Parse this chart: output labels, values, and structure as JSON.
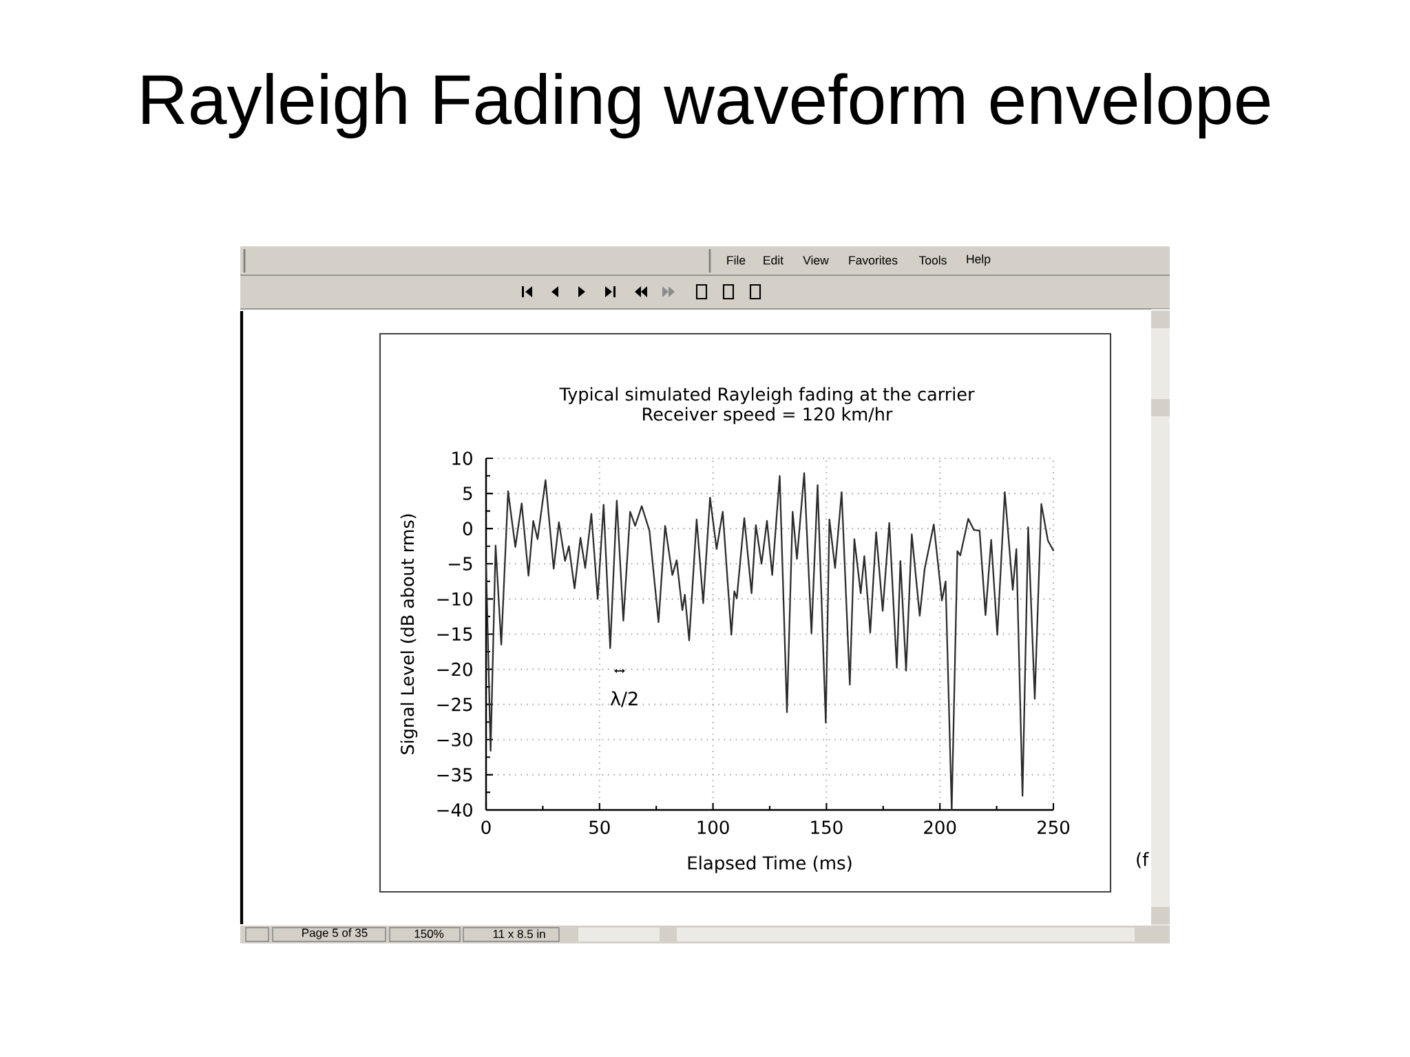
{
  "chart_data": {
    "type": "line",
    "title": "Rayleigh Fading waveform envelope",
    "subtitle": "Typical simulated Rayleigh fading at the carrier",
    "xlabel": "Elapsed Time (ms)",
    "ylabel": "Signal Level (dB about rms)",
    "annotations": [
      "Receiver speed = 120 km/hr",
      "λ/2",
      "File",
      "Edit",
      "View",
      "Favorites",
      "Tools",
      "Help",
      "Page 5 of 35",
      "150%",
      "11 x 8.5 in",
      "(f"
    ],
    "x": [
      0,
      2.0,
      4.2,
      6.7,
      9.7,
      12.9,
      15.7,
      18.7,
      20.8,
      22.7,
      26.2,
      29.8,
      32.1,
      34.8,
      36.5,
      39.0,
      41.6,
      43.7,
      46.4,
      49.2,
      51.8,
      54.7,
      57.6,
      60.5,
      63.5,
      65.7,
      68.6,
      72.0,
      76.0,
      78.9,
      82.1,
      84.0,
      86.5,
      87.6,
      89.5,
      92.8,
      95.7,
      98.7,
      101.6,
      104.3,
      108.1,
      109.4,
      110.5,
      113.8,
      117.0,
      118.9,
      121.4,
      123.8,
      126.1,
      129.4,
      132.6,
      135.1,
      137.0,
      140.2,
      143.4,
      146.1,
      149.7,
      151.3,
      153.8,
      156.7,
      160.3,
      162.3,
      165.1,
      166.7,
      169.3,
      171.9,
      174.8,
      177.7,
      181.0,
      182.6,
      185.1,
      187.6,
      191.1,
      193.3,
      197.3,
      200.9,
      202.5,
      205.2,
      207.7,
      209.0,
      212.5,
      215.0,
      217.5,
      220.1,
      222.6,
      225.3,
      228.6,
      232.1,
      233.7,
      236.4,
      238.9,
      241.8,
      244.7,
      247.6,
      250.0
    ],
    "values": [
      -5,
      -31.6,
      -2.4,
      -16.5,
      5.3,
      -2.6,
      3.6,
      -6.7,
      1.1,
      -1.5,
      6.9,
      -5.7,
      0.9,
      -4.6,
      -2.5,
      -8.5,
      -1.3,
      -5.6,
      2.1,
      -10.0,
      3.4,
      -17.0,
      4.0,
      -13.1,
      2.4,
      0.4,
      3.2,
      -0.3,
      -13.3,
      0.4,
      -6.6,
      -4.5,
      -11.6,
      -9.4,
      -15.9,
      1.3,
      -10.6,
      4.4,
      -2.9,
      2.4,
      -15.1,
      -8.9,
      -9.9,
      1.5,
      -9.2,
      0.5,
      -5.0,
      1.1,
      -6.6,
      7.5,
      -26.1,
      2.4,
      -4.3,
      7.9,
      -14.9,
      6.2,
      -27.6,
      1.3,
      -5.6,
      5.2,
      -22.2,
      -1.5,
      -9.2,
      -3.9,
      -14.8,
      -0.5,
      -11.7,
      0.8,
      -19.8,
      -4.6,
      -20.2,
      -0.8,
      -12.4,
      -5.7,
      0.6,
      -10.2,
      -7.5,
      -40,
      -3.2,
      -3.8,
      1.4,
      -0.2,
      -0.3,
      -12.3,
      -1.6,
      -15.1,
      5.2,
      -8.7,
      -2.9,
      -38.0,
      0.2,
      -24.2,
      3.5,
      -1.7,
      -3.1
    ],
    "color": "#2b2b2b",
    "xlim": [
      0,
      250
    ],
    "ylim": [
      -40,
      10
    ],
    "xticks": [
      0,
      50,
      100,
      150,
      200,
      250
    ],
    "yticks": [
      {
        "value": -40,
        "label": "−40"
      },
      {
        "value": -35,
        "label": "−35"
      },
      {
        "value": -30,
        "label": "−30"
      },
      {
        "value": -25,
        "label": "−25"
      },
      {
        "value": -20,
        "label": "−20"
      },
      {
        "value": -15,
        "label": "−15"
      },
      {
        "value": -10,
        "label": "−10"
      },
      {
        "value": -5,
        "label": "−5"
      },
      0,
      5,
      10
    ],
    "grid": true,
    "marker": "none",
    "line_style": "solid"
  }
}
